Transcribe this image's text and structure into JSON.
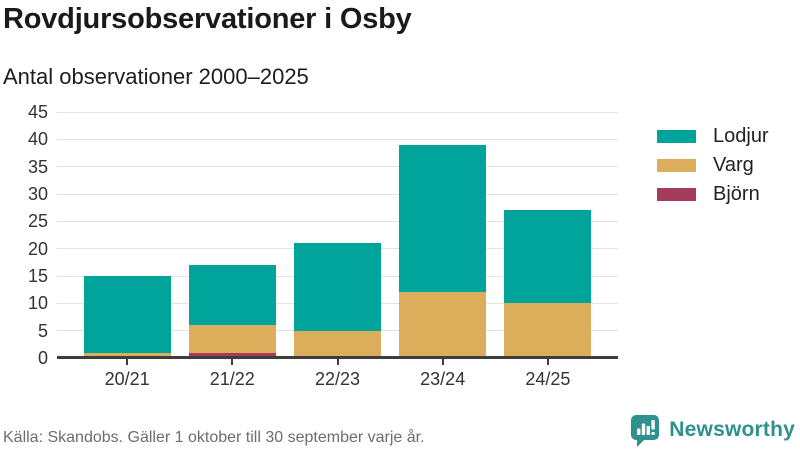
{
  "header": {
    "title": "Rovdjursobservationer i Osby",
    "subtitle": "Antal observationer 2000–2025"
  },
  "chart_data": {
    "type": "bar",
    "stacked": true,
    "title": "Rovdjursobservationer i Osby",
    "subtitle": "Antal observationer 2000–2025",
    "categories": [
      "20/21",
      "21/22",
      "22/23",
      "23/24",
      "24/25"
    ],
    "series": [
      {
        "name": "Lodjur",
        "color": "#00a49a",
        "values": [
          14,
          11,
          16,
          27,
          17
        ]
      },
      {
        "name": "Varg",
        "color": "#dcae5c",
        "values": [
          1,
          5,
          5,
          12,
          10
        ]
      },
      {
        "name": "Björn",
        "color": "#a53c5b",
        "values": [
          0,
          1,
          0,
          0,
          0
        ]
      }
    ],
    "stack_order_bottom_to_top": [
      "Björn",
      "Varg",
      "Lodjur"
    ],
    "totals": [
      15,
      17,
      21,
      39,
      27
    ],
    "xlabel": "",
    "ylabel": "",
    "ylim": [
      0,
      45
    ],
    "yticks": [
      0,
      5,
      10,
      15,
      20,
      25,
      30,
      35,
      40,
      45
    ],
    "grid": true,
    "legend_position": "right"
  },
  "footer": {
    "source": "Källa: Skandobs. Gäller 1 oktober till 30 september varje år.",
    "brand": "Newsworthy",
    "brand_icon": "newsworthy-logo-icon"
  },
  "colors": {
    "lodjur": "#00a49a",
    "varg": "#dcae5c",
    "bjorn": "#a53c5b",
    "brand_teal": "#2e918e",
    "axis": "#3d3d3d",
    "gridline": "#e3e3e3",
    "tick_label": "#333333",
    "title_text": "#1a1a1a",
    "source_text": "#6d6d6d"
  }
}
